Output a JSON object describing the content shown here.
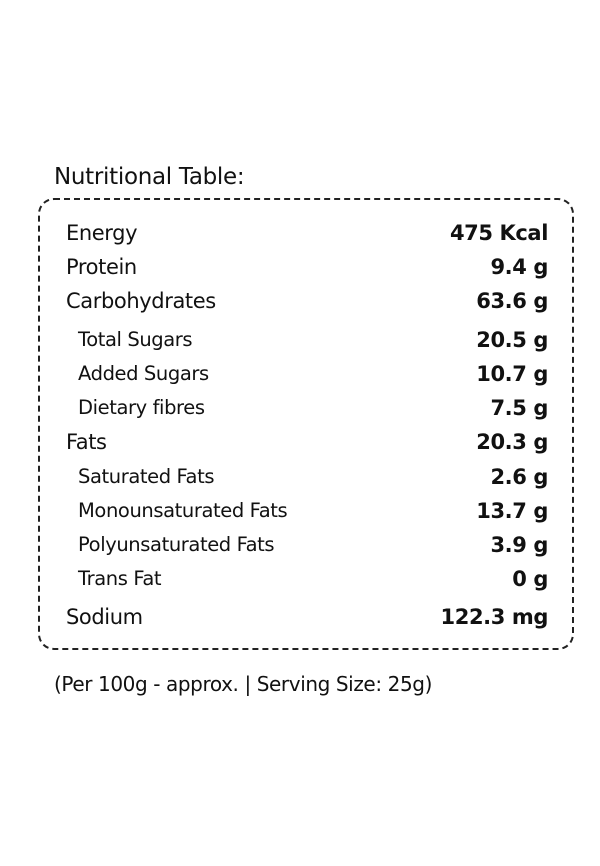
{
  "title": "Nutritional Table:",
  "nutrients": [
    {
      "label": "Energy",
      "value": "475 Kcal"
    },
    {
      "label": "Protein",
      "value": "9.4 g"
    },
    {
      "label": "Carbohydrates",
      "value": "63.6 g"
    },
    {
      "label": "Total Sugars",
      "value": "20.5 g"
    },
    {
      "label": "Added Sugars",
      "value": "10.7 g"
    },
    {
      "label": "Dietary fibres",
      "value": "7.5 g"
    },
    {
      "label": "Fats",
      "value": "20.3 g"
    },
    {
      "label": "Saturated Fats",
      "value": "2.6 g"
    },
    {
      "label": "Monounsaturated Fats",
      "value": "13.7 g"
    },
    {
      "label": "Polyunsaturated Fats",
      "value": "3.9 g"
    },
    {
      "label": "Trans Fat",
      "value": "0 g"
    },
    {
      "label": "Sodium",
      "value": "122.3 mg"
    }
  ],
  "footnote": "(Per 100g - approx. | Serving Size: 25g)"
}
